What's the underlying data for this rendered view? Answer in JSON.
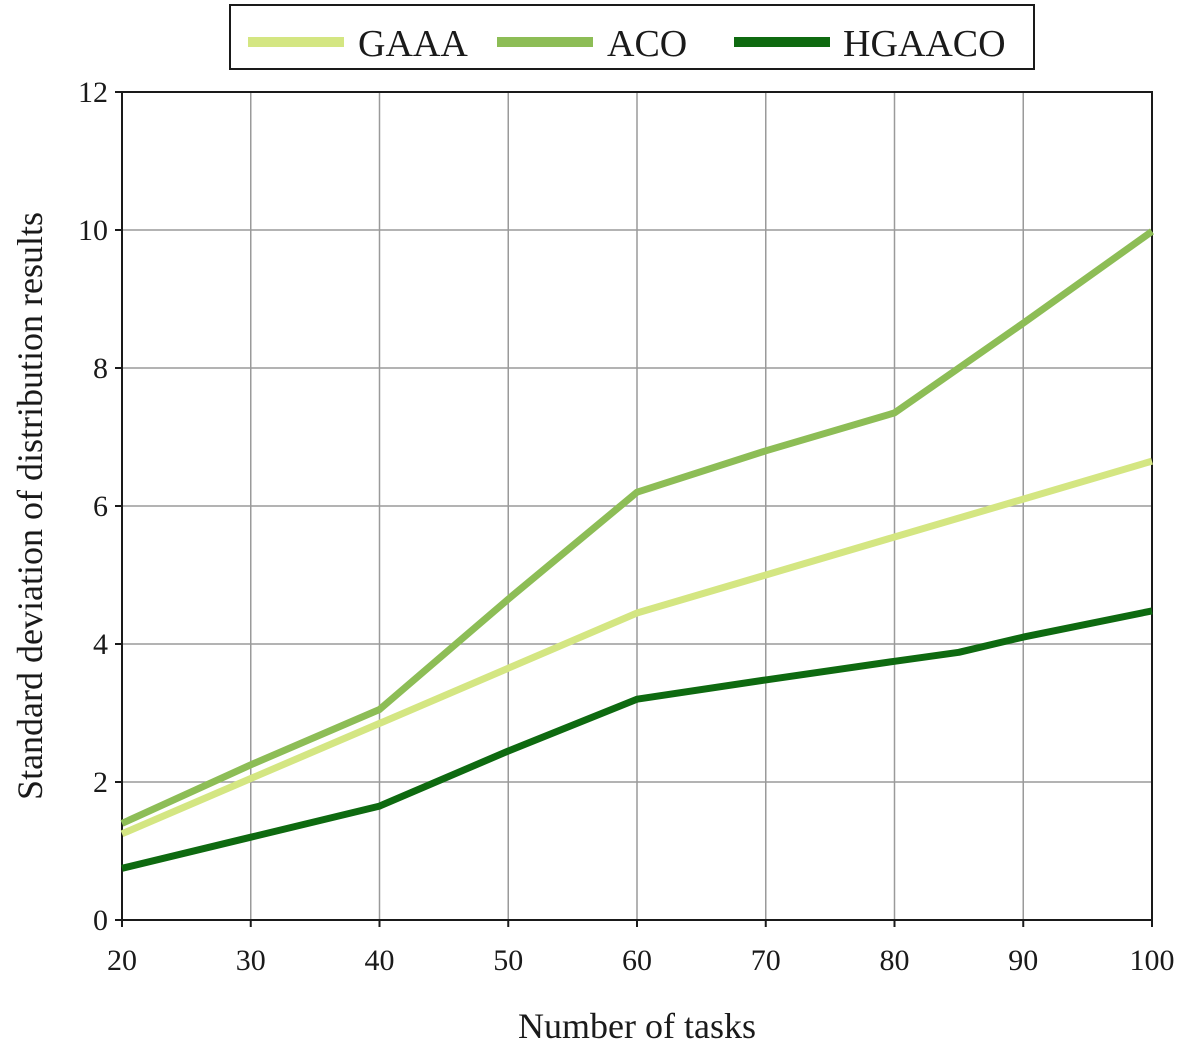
{
  "chart_data": {
    "type": "line",
    "xlabel": "Number of tasks",
    "ylabel": "Standard deviation of distribution results",
    "xlim": [
      20,
      100
    ],
    "ylim": [
      0,
      12
    ],
    "x_ticks": [
      20,
      30,
      40,
      50,
      60,
      70,
      80,
      90,
      100
    ],
    "y_ticks": [
      0,
      2,
      4,
      6,
      8,
      10,
      12
    ],
    "x_tick_labels": [
      "20",
      "30",
      "40",
      "50",
      "60",
      "70",
      "80",
      "90",
      "100"
    ],
    "y_tick_labels": [
      "0",
      "2",
      "4",
      "6",
      "8",
      "10",
      "12"
    ],
    "grid": true,
    "legend_position": "top",
    "series": [
      {
        "name": "GAAA",
        "color": "#d4e682",
        "x": [
          20,
          30,
          40,
          50,
          60,
          70,
          80,
          90,
          100
        ],
        "y": [
          1.25,
          2.05,
          2.85,
          3.65,
          4.45,
          5.0,
          5.55,
          6.1,
          6.65
        ]
      },
      {
        "name": "ACO",
        "color": "#8dbd56",
        "x": [
          20,
          30,
          40,
          50,
          60,
          70,
          80,
          90,
          100
        ],
        "y": [
          1.4,
          2.25,
          3.05,
          4.65,
          6.2,
          6.8,
          7.35,
          8.65,
          9.98
        ]
      },
      {
        "name": "HGAACO",
        "color": "#0e6a10",
        "x": [
          20,
          30,
          40,
          50,
          60,
          70,
          80,
          85,
          90,
          100
        ],
        "y": [
          0.75,
          1.2,
          1.65,
          2.45,
          3.2,
          3.48,
          3.75,
          3.88,
          4.1,
          4.48
        ]
      }
    ]
  }
}
